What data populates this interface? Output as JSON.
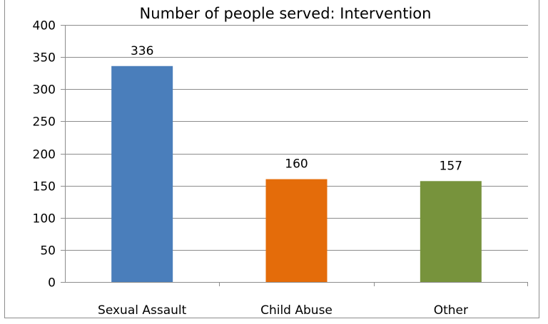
{
  "chart_data": {
    "type": "bar",
    "title": "Number of people served: Intervention",
    "xlabel": "",
    "ylabel": "",
    "categories": [
      "Sexual Assault",
      "Child Abuse",
      "Other"
    ],
    "values": [
      336,
      160,
      157
    ],
    "data_labels": [
      "336",
      "160",
      "157"
    ],
    "bar_colors": [
      "#4a7ebb",
      "#e46c0a",
      "#77933c"
    ],
    "ylim": [
      0,
      400
    ],
    "yticks": [
      0,
      50,
      100,
      150,
      200,
      250,
      300,
      350,
      400
    ],
    "grid": true,
    "legend": "none"
  }
}
